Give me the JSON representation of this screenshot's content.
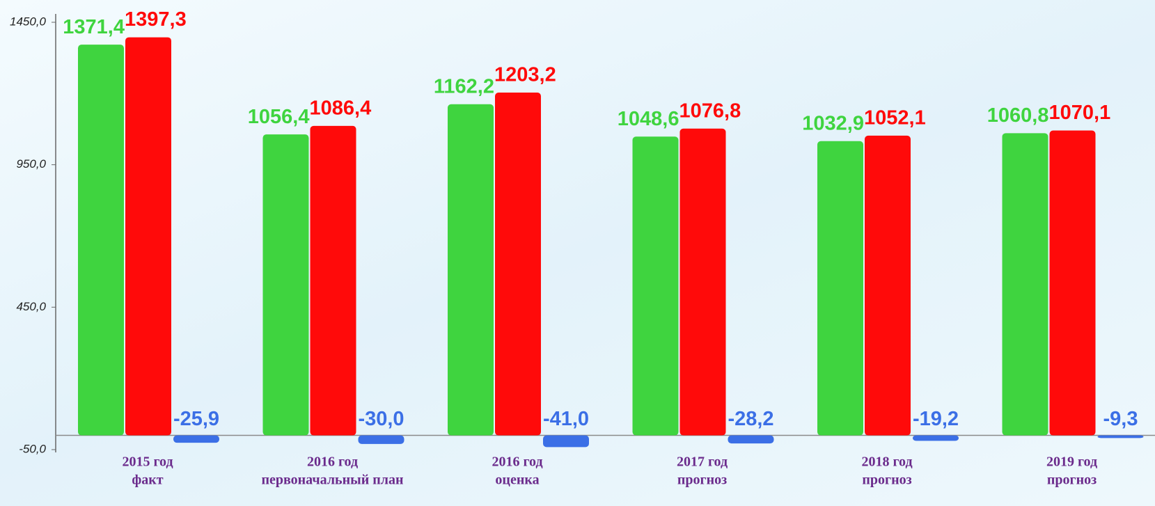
{
  "chart_data": {
    "type": "bar",
    "categories": [
      [
        "2015 год",
        "факт"
      ],
      [
        "2016 год",
        "первоначальный план"
      ],
      [
        "2016 год",
        "оценка"
      ],
      [
        "2017 год",
        "прогноз"
      ],
      [
        "2018 год",
        "прогноз"
      ],
      [
        "2019 год",
        "прогноз"
      ]
    ],
    "series": [
      {
        "color": "#3fd43f",
        "values": [
          1371.4,
          1056.4,
          1162.2,
          1048.6,
          1032.9,
          1060.8
        ],
        "value_labels": [
          "1371,4",
          "1056,4",
          "1162,2",
          "1048,6",
          "1032,9",
          "1060,8"
        ]
      },
      {
        "color": "#ff0a0a",
        "values": [
          1397.3,
          1086.4,
          1203.2,
          1076.8,
          1052.1,
          1070.1
        ],
        "value_labels": [
          "1397,3",
          "1086,4",
          "1203,2",
          "1076,8",
          "1052,1",
          "1070,1"
        ]
      },
      {
        "color": "#3b6fe6",
        "values": [
          -25.9,
          -30.0,
          -41.0,
          -28.2,
          -19.2,
          -9.3
        ],
        "value_labels": [
          "-25,9",
          "-30,0",
          "-41,0",
          "-28,2",
          "-19,2",
          "-9,3"
        ]
      }
    ],
    "ylim": [
      -50,
      1450
    ],
    "yticks": [
      {
        "value": -50,
        "label": "-50,0"
      },
      {
        "value": 450,
        "label": "450,0"
      },
      {
        "value": 950,
        "label": "950,0"
      },
      {
        "value": 1450,
        "label": "1450,0"
      }
    ]
  }
}
